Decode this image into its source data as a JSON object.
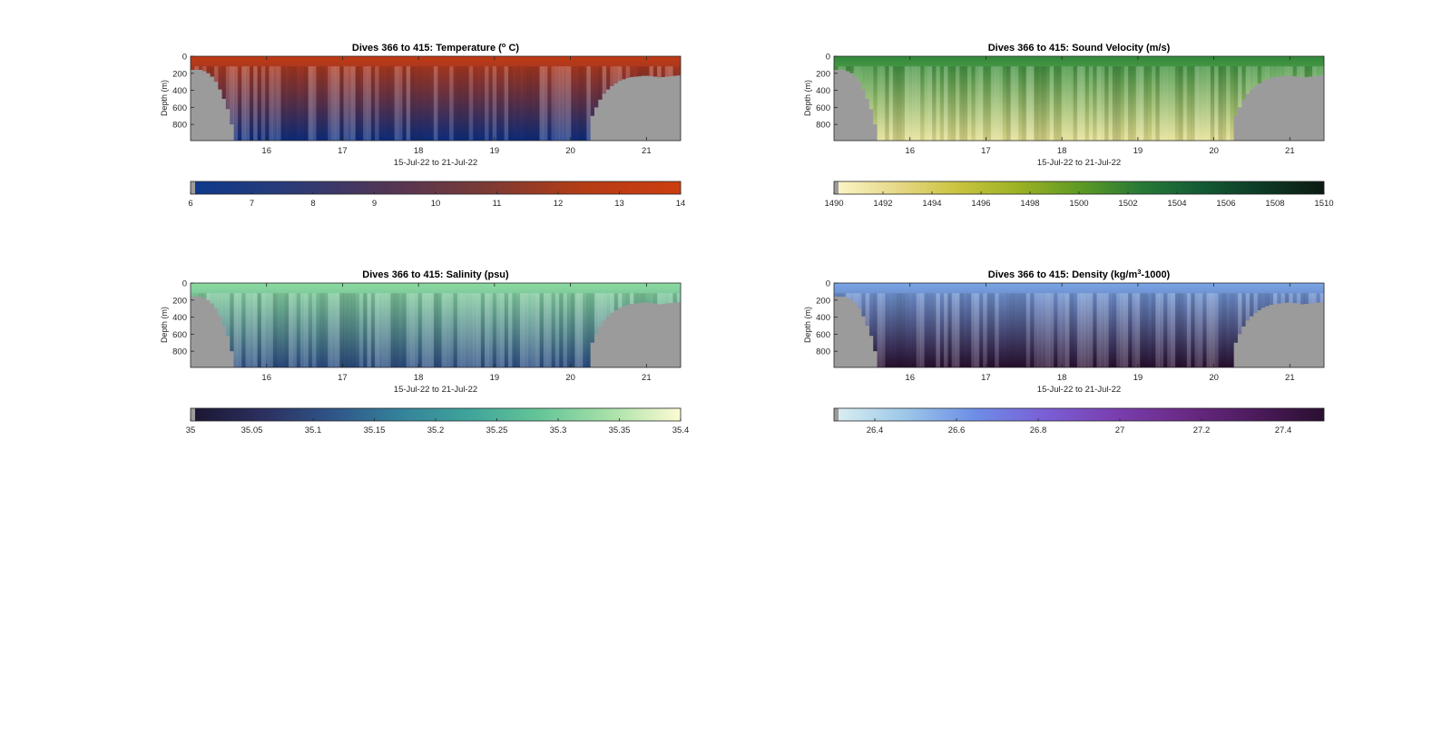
{
  "chart_data": [
    {
      "type": "heatmap",
      "title": "Dives 366 to 415: Temperature (",
      "title_sup": "o",
      "title_end": " C)",
      "xlabel": "15-Jul-22 to 21-Jul-22",
      "ylabel": "Depth (m)",
      "x_ticks": [
        "16",
        "17",
        "18",
        "19",
        "20",
        "21"
      ],
      "y_ticks": [
        "0",
        "200",
        "400",
        "600",
        "800"
      ],
      "xlim": [
        15.0,
        21.45
      ],
      "ylim": [
        0,
        990
      ],
      "colormap": [
        "#0d3a8c",
        "#2a3b78",
        "#523556",
        "#7a3a35",
        "#b53c16",
        "#cc3d0f"
      ],
      "deep_color": "#0d2f82",
      "surface_color": "#c23a12",
      "colorbar": {
        "ticks": [
          "6",
          "7",
          "8",
          "9",
          "10",
          "11",
          "12",
          "13",
          "14"
        ],
        "range": [
          6,
          14
        ]
      },
      "bathymetry_color": "#9b9b9b",
      "seafloor_depth": [
        160,
        160,
        160,
        175,
        200,
        240,
        300,
        390,
        500,
        620,
        800,
        990,
        990,
        990,
        990,
        990,
        990,
        990,
        990,
        990,
        990,
        990,
        990,
        990,
        990,
        990,
        990,
        990,
        990,
        990,
        990,
        990,
        990,
        990,
        990,
        990,
        990,
        990,
        990,
        990,
        990,
        990,
        990,
        990,
        990,
        990,
        990,
        990,
        990,
        990,
        990,
        990,
        990,
        990,
        990,
        990,
        990,
        990,
        990,
        990,
        990,
        990,
        990,
        990,
        990,
        990,
        990,
        990,
        990,
        990,
        990,
        990,
        990,
        990,
        990,
        990,
        990,
        990,
        990,
        990,
        990,
        990,
        990,
        990,
        990,
        990,
        990,
        990,
        990,
        990,
        990,
        990,
        990,
        990,
        990,
        990,
        990,
        990,
        990,
        990,
        990,
        990,
        700,
        600,
        510,
        440,
        390,
        350,
        320,
        290,
        270,
        255,
        245,
        240,
        235,
        230,
        230,
        235,
        240,
        250,
        245,
        240,
        235,
        230,
        225
      ]
    },
    {
      "type": "heatmap",
      "title": "Dives 366 to 415: Sound Velocity (m/s)",
      "xlabel": "15-Jul-22 to 21-Jul-22",
      "ylabel": "Depth (m)",
      "x_ticks": [
        "16",
        "17",
        "18",
        "19",
        "20",
        "21"
      ],
      "y_ticks": [
        "0",
        "200",
        "400",
        "600",
        "800"
      ],
      "xlim": [
        15.0,
        21.45
      ],
      "ylim": [
        0,
        990
      ],
      "colormap": [
        "#fcf5c8",
        "#e6d98a",
        "#c9c440",
        "#9db223",
        "#5f9a24",
        "#287a37",
        "#145a35",
        "#0d3a24",
        "#0d1a12"
      ],
      "deep_color": "#e5df8f",
      "surface_color": "#2f8a3a",
      "colorbar": {
        "ticks": [
          "1490",
          "1492",
          "1494",
          "1496",
          "1498",
          "1500",
          "1502",
          "1504",
          "1506",
          "1508",
          "1510"
        ],
        "range": [
          1490,
          1510
        ]
      },
      "bathymetry_color": "#9b9b9b",
      "seafloor_depth": [
        160,
        160,
        160,
        175,
        200,
        240,
        300,
        390,
        500,
        620,
        800,
        990,
        990,
        990,
        990,
        990,
        990,
        990,
        990,
        990,
        990,
        990,
        990,
        990,
        990,
        990,
        990,
        990,
        990,
        990,
        990,
        990,
        990,
        990,
        990,
        990,
        990,
        990,
        990,
        990,
        990,
        990,
        990,
        990,
        990,
        990,
        990,
        990,
        990,
        990,
        990,
        990,
        990,
        990,
        990,
        990,
        990,
        990,
        990,
        990,
        990,
        990,
        990,
        990,
        990,
        990,
        990,
        990,
        990,
        990,
        990,
        990,
        990,
        990,
        990,
        990,
        990,
        990,
        990,
        990,
        990,
        990,
        990,
        990,
        990,
        990,
        990,
        990,
        990,
        990,
        990,
        990,
        990,
        990,
        990,
        990,
        990,
        990,
        990,
        990,
        990,
        990,
        700,
        600,
        510,
        440,
        390,
        350,
        320,
        290,
        270,
        255,
        245,
        240,
        235,
        230,
        230,
        235,
        240,
        250,
        245,
        240,
        235,
        230,
        225
      ]
    },
    {
      "type": "heatmap",
      "title": "Dives 366 to 415: Salinity (psu)",
      "xlabel": "15-Jul-22 to 21-Jul-22",
      "ylabel": "Depth (m)",
      "x_ticks": [
        "16",
        "17",
        "18",
        "19",
        "20",
        "21"
      ],
      "y_ticks": [
        "0",
        "200",
        "400",
        "600",
        "800"
      ],
      "xlim": [
        15.0,
        21.45
      ],
      "ylim": [
        0,
        990
      ],
      "colormap": [
        "#1a1530",
        "#2b2f5e",
        "#2f5488",
        "#34829a",
        "#3fa59a",
        "#66c597",
        "#a9e1a9",
        "#fdfbd2"
      ],
      "deep_color": "#2c4d83",
      "surface_color": "#8cdca0",
      "colorbar": {
        "ticks": [
          "35",
          "35.05",
          "35.1",
          "35.15",
          "35.2",
          "35.25",
          "35.3",
          "35.35",
          "35.4"
        ],
        "range": [
          35,
          35.4
        ]
      },
      "bathymetry_color": "#9b9b9b",
      "seafloor_depth": [
        160,
        160,
        160,
        175,
        200,
        240,
        300,
        390,
        500,
        620,
        800,
        990,
        990,
        990,
        990,
        990,
        990,
        990,
        990,
        990,
        990,
        990,
        990,
        990,
        990,
        990,
        990,
        990,
        990,
        990,
        990,
        990,
        990,
        990,
        990,
        990,
        990,
        990,
        990,
        990,
        990,
        990,
        990,
        990,
        990,
        990,
        990,
        990,
        990,
        990,
        990,
        990,
        990,
        990,
        990,
        990,
        990,
        990,
        990,
        990,
        990,
        990,
        990,
        990,
        990,
        990,
        990,
        990,
        990,
        990,
        990,
        990,
        990,
        990,
        990,
        990,
        990,
        990,
        990,
        990,
        990,
        990,
        990,
        990,
        990,
        990,
        990,
        990,
        990,
        990,
        990,
        990,
        990,
        990,
        990,
        990,
        990,
        990,
        990,
        990,
        990,
        990,
        700,
        600,
        510,
        440,
        390,
        350,
        320,
        290,
        270,
        255,
        245,
        240,
        235,
        230,
        230,
        235,
        240,
        250,
        245,
        240,
        235,
        230,
        225
      ]
    },
    {
      "type": "heatmap",
      "title": "Dives 366 to 415: Density (kg/m",
      "title_sup": "3",
      "title_end": "-1000)",
      "xlabel": "15-Jul-22 to 21-Jul-22",
      "ylabel": "Depth (m)",
      "x_ticks": [
        "16",
        "17",
        "18",
        "19",
        "20",
        "21"
      ],
      "y_ticks": [
        "0",
        "200",
        "400",
        "600",
        "800"
      ],
      "xlim": [
        15.0,
        21.45
      ],
      "ylim": [
        0,
        990
      ],
      "colormap": [
        "#dcf0f2",
        "#9dc8e8",
        "#6d8ee6",
        "#7a5fd6",
        "#7a3fb0",
        "#6a2a86",
        "#4c1b5c",
        "#2a0f30"
      ],
      "deep_color": "#2a0f30",
      "surface_color": "#7aa6e8",
      "colorbar": {
        "ticks": [
          "26.4",
          "26.6",
          "26.8",
          "27",
          "27.2",
          "27.4"
        ],
        "range": [
          26.3,
          27.5
        ]
      },
      "bathymetry_color": "#9b9b9b",
      "seafloor_depth": [
        160,
        160,
        160,
        175,
        200,
        240,
        300,
        390,
        500,
        620,
        800,
        990,
        990,
        990,
        990,
        990,
        990,
        990,
        990,
        990,
        990,
        990,
        990,
        990,
        990,
        990,
        990,
        990,
        990,
        990,
        990,
        990,
        990,
        990,
        990,
        990,
        990,
        990,
        990,
        990,
        990,
        990,
        990,
        990,
        990,
        990,
        990,
        990,
        990,
        990,
        990,
        990,
        990,
        990,
        990,
        990,
        990,
        990,
        990,
        990,
        990,
        990,
        990,
        990,
        990,
        990,
        990,
        990,
        990,
        990,
        990,
        990,
        990,
        990,
        990,
        990,
        990,
        990,
        990,
        990,
        990,
        990,
        990,
        990,
        990,
        990,
        990,
        990,
        990,
        990,
        990,
        990,
        990,
        990,
        990,
        990,
        990,
        990,
        990,
        990,
        990,
        990,
        700,
        600,
        510,
        440,
        390,
        350,
        320,
        290,
        270,
        255,
        245,
        240,
        235,
        230,
        230,
        235,
        240,
        250,
        245,
        240,
        235,
        230,
        225
      ]
    }
  ]
}
